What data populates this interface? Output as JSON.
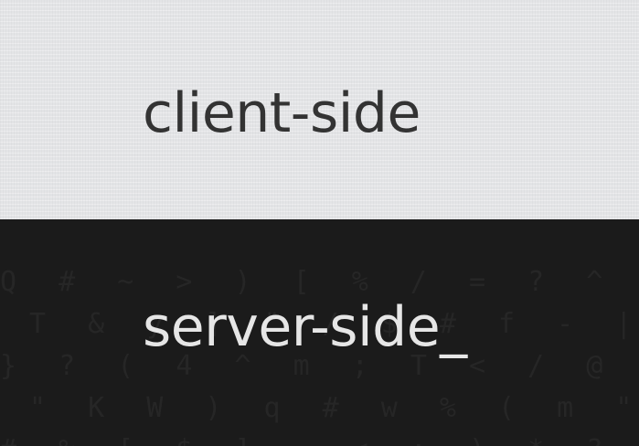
{
  "top_panel": {
    "label": "client-side",
    "background_color": "#e3e4e6",
    "text_color": "#333333"
  },
  "bottom_panel": {
    "label": "server-side_",
    "background_color": "#1b1b1b",
    "text_color": "#e6e6e6",
    "texture_color": "#262626"
  }
}
